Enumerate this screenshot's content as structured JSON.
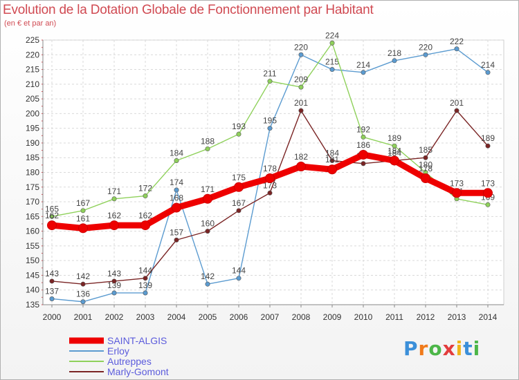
{
  "title": "Evolution de la Dotation Globale de Fonctionnement par Habitant",
  "subtitle": "(en € et par an)",
  "logo": {
    "letters": [
      "P",
      "r",
      "o",
      "x",
      "i",
      "t",
      "i"
    ],
    "colors": [
      "#3b8fd9",
      "#f07a1a",
      "#4cb648",
      "#e23c3c",
      "#f0b419",
      "#3b8fd9",
      "#4cb648"
    ]
  },
  "chart_data": {
    "type": "line",
    "title": "Evolution de la Dotation Globale de Fonctionnement par Habitant",
    "subtitle": "(en € et par an)",
    "xlabel": "",
    "ylabel": "",
    "x": [
      2000,
      2001,
      2002,
      2003,
      2004,
      2005,
      2006,
      2007,
      2008,
      2009,
      2010,
      2011,
      2012,
      2013,
      2014
    ],
    "ylim": [
      135,
      225
    ],
    "yticks": [
      135,
      140,
      145,
      150,
      155,
      160,
      165,
      170,
      175,
      180,
      185,
      190,
      195,
      200,
      205,
      210,
      215,
      220,
      225
    ],
    "grid": true,
    "legend_position": "bottom-left",
    "series": [
      {
        "name": "SAINT-ALGIS",
        "color": "#ee0000",
        "values": [
          162,
          161,
          162,
          162,
          168,
          171,
          175,
          178,
          182,
          181,
          186,
          184,
          178,
          173,
          173
        ]
      },
      {
        "name": "Erloy",
        "color": "#5b9bd0",
        "values": [
          137,
          136,
          139,
          139,
          174,
          142,
          144,
          195,
          220,
          215,
          214,
          218,
          220,
          222,
          214
        ]
      },
      {
        "name": "Autreppes",
        "color": "#8fd15b",
        "values": [
          165,
          167,
          171,
          172,
          184,
          188,
          193,
          211,
          209,
          224,
          192,
          189,
          180,
          171,
          169
        ]
      },
      {
        "name": "Marly-Gomont",
        "color": "#7a2424",
        "values": [
          143,
          142,
          143,
          144,
          157,
          160,
          167,
          173,
          201,
          184,
          183,
          184,
          185,
          201,
          189
        ]
      }
    ]
  }
}
